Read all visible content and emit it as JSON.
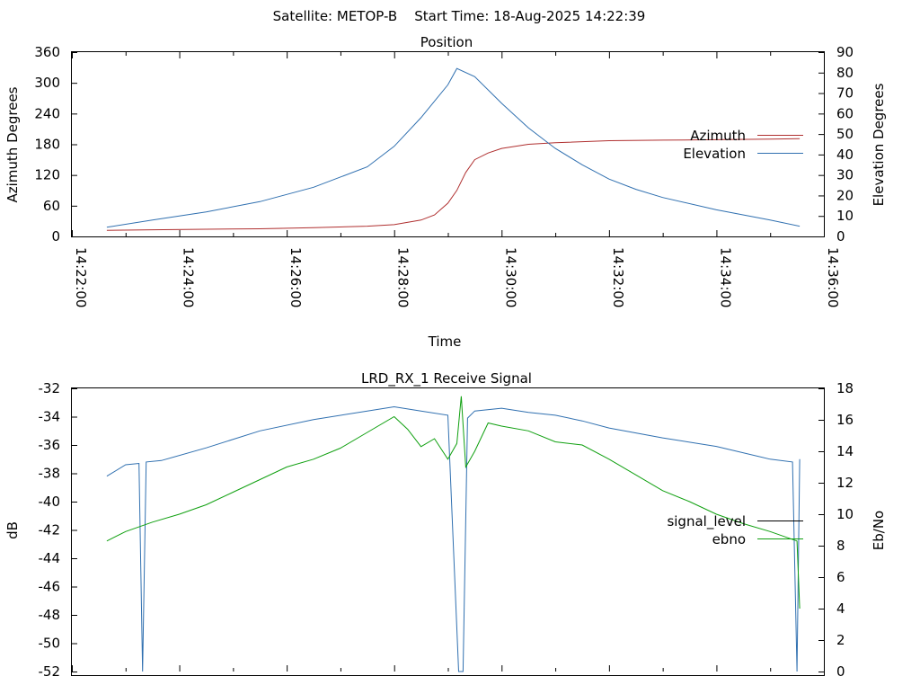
{
  "header": {
    "title": "Satellite: METOP-B    Start Time: 18-Aug-2025 14:22:39"
  },
  "chart_data": [
    {
      "type": "line",
      "title": "Position",
      "xlabel": "Time",
      "ylabel": "Azimuth Degrees",
      "y2label": "Elevation Degrees",
      "x_ticks": [
        "14:22:00",
        "14:24:00",
        "14:26:00",
        "14:28:00",
        "14:30:00",
        "14:32:00",
        "14:34:00",
        "14:36:00"
      ],
      "xlim": [
        "14:22:00",
        "14:36:00"
      ],
      "ylim": [
        0,
        360
      ],
      "y_ticks": [
        "0",
        "60",
        "120",
        "180",
        "240",
        "300",
        "360"
      ],
      "y2lim": [
        0,
        90
      ],
      "y2_ticks": [
        "0",
        "10",
        "20",
        "30",
        "40",
        "50",
        "60",
        "70",
        "80",
        "90"
      ],
      "grid": false,
      "legend": "right",
      "series": [
        {
          "name": "Azimuth",
          "axis": "y",
          "color": "#b03030",
          "x": [
            "14:22:39",
            "14:23:30",
            "14:24:30",
            "14:25:30",
            "14:26:30",
            "14:27:30",
            "14:28:00",
            "14:28:30",
            "14:28:45",
            "14:29:00",
            "14:29:10",
            "14:29:20",
            "14:29:30",
            "14:29:45",
            "14:30:00",
            "14:30:30",
            "14:31:00",
            "14:32:00",
            "14:33:00",
            "14:34:00",
            "14:35:00",
            "14:35:33"
          ],
          "values": [
            12,
            13,
            14,
            15,
            17,
            20,
            23,
            32,
            42,
            65,
            90,
            125,
            150,
            163,
            172,
            180,
            183,
            187,
            188,
            189,
            190,
            191
          ]
        },
        {
          "name": "Elevation",
          "axis": "y2",
          "color": "#3070b0",
          "x": [
            "14:22:39",
            "14:23:30",
            "14:24:30",
            "14:25:30",
            "14:26:30",
            "14:27:30",
            "14:28:00",
            "14:28:30",
            "14:29:00",
            "14:29:10",
            "14:29:30",
            "14:30:00",
            "14:30:30",
            "14:31:00",
            "14:31:30",
            "14:32:00",
            "14:32:30",
            "14:33:00",
            "14:34:00",
            "14:35:00",
            "14:35:33"
          ],
          "values": [
            4.5,
            8,
            12,
            17,
            24,
            34,
            44,
            58,
            74,
            82,
            78,
            65,
            53,
            43,
            35,
            28,
            23,
            19,
            13,
            8,
            5
          ]
        }
      ]
    },
    {
      "type": "line",
      "title": "LRD_RX_1 Receive Signal",
      "ylabel": "dB",
      "y2label": "Eb/No",
      "xlim": [
        "14:22:00",
        "14:36:00"
      ],
      "ylim": [
        -52,
        -32
      ],
      "y_ticks": [
        "-52",
        "-50",
        "-48",
        "-46",
        "-44",
        "-42",
        "-40",
        "-38",
        "-36",
        "-34",
        "-32"
      ],
      "y2lim": [
        0,
        18
      ],
      "y2_ticks": [
        "0",
        "2",
        "4",
        "6",
        "8",
        "10",
        "12",
        "14",
        "16",
        "18"
      ],
      "grid": false,
      "legend": "right",
      "series": [
        {
          "name": "signal_level",
          "axis": "y",
          "color": "#3070b0",
          "x": [
            "14:22:39",
            "14:23:00",
            "14:23:15",
            "14:23:19",
            "14:23:23",
            "14:23:40",
            "14:24:30",
            "14:25:30",
            "14:26:30",
            "14:27:30",
            "14:28:00",
            "14:28:30",
            "14:29:00",
            "14:29:12",
            "14:29:17",
            "14:29:22",
            "14:29:30",
            "14:30:00",
            "14:30:30",
            "14:31:00",
            "14:31:30",
            "14:32:00",
            "14:33:00",
            "14:34:00",
            "14:35:00",
            "14:35:25",
            "14:35:30",
            "14:35:33"
          ],
          "values": [
            -38.2,
            -37.4,
            -37.3,
            -52,
            -37.2,
            -37.1,
            -36.2,
            -35.0,
            -34.2,
            -33.6,
            -33.3,
            -33.6,
            -33.9,
            -52,
            -52,
            -34.1,
            -33.6,
            -33.4,
            -33.7,
            -33.9,
            -34.3,
            -34.8,
            -35.5,
            -36.1,
            -37.0,
            -37.2,
            -52,
            -37.0
          ]
        },
        {
          "name": "ebno",
          "axis": "y2",
          "color": "#10a010",
          "x": [
            "14:22:39",
            "14:23:00",
            "14:23:30",
            "14:24:00",
            "14:24:30",
            "14:25:00",
            "14:25:30",
            "14:26:00",
            "14:26:30",
            "14:27:00",
            "14:27:30",
            "14:28:00",
            "14:28:15",
            "14:28:30",
            "14:28:45",
            "14:29:00",
            "14:29:10",
            "14:29:15",
            "14:29:20",
            "14:29:30",
            "14:29:45",
            "14:30:00",
            "14:30:30",
            "14:31:00",
            "14:31:30",
            "14:32:00",
            "14:32:30",
            "14:33:00",
            "14:33:30",
            "14:34:00",
            "14:34:30",
            "14:35:00",
            "14:35:30",
            "14:35:33"
          ],
          "values": [
            8.3,
            8.9,
            9.5,
            10,
            10.6,
            11.4,
            12.2,
            13.0,
            13.5,
            14.2,
            15.2,
            16.2,
            15.4,
            14.3,
            14.8,
            13.5,
            14.5,
            17.5,
            13.0,
            14.0,
            15.8,
            15.6,
            15.3,
            14.6,
            14.4,
            13.5,
            12.5,
            11.5,
            10.8,
            10.0,
            9.4,
            8.9,
            8.3,
            4.0
          ]
        }
      ]
    }
  ]
}
